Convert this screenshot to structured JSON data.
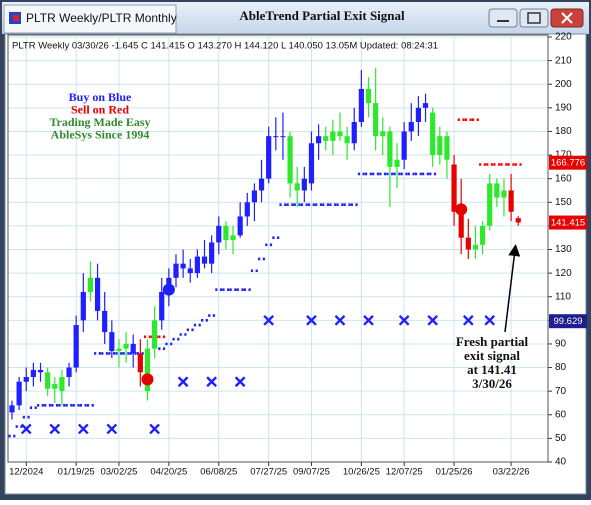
{
  "window": {
    "tab": "PLTR Weekly/PLTR Monthly",
    "title": "AbleTrend Partial Exit Signal"
  },
  "chart_data": {
    "type": "candlestick",
    "header": "PLTR  Weekly 03/30/26 -1.645 C 141.415 O 143.270 H 144.120 L 140.050 13.05M Updated: 08:24:31",
    "categories": [
      null,
      null,
      "12/2024",
      null,
      null,
      null,
      null,
      null,
      null,
      "01/19/25",
      null,
      null,
      null,
      null,
      null,
      "03/02/25",
      null,
      null,
      null,
      null,
      null,
      null,
      "04/20/25",
      null,
      null,
      null,
      null,
      null,
      null,
      "06/08/25",
      null,
      null,
      null,
      null,
      null,
      null,
      "07/27/25",
      null,
      null,
      null,
      null,
      null,
      "09/07/25",
      null,
      null,
      null,
      null,
      null,
      null,
      "10/26/25",
      null,
      null,
      null,
      null,
      null,
      "12/07/25",
      null,
      null,
      null,
      null,
      null,
      null,
      "01/25/26",
      null,
      null,
      null,
      null,
      null,
      null,
      null,
      "03/22/26",
      null
    ],
    "open": [
      61,
      64,
      74,
      76,
      79,
      78,
      71,
      70,
      76,
      80,
      100,
      112,
      118,
      104,
      95,
      87,
      88,
      90,
      86,
      70,
      88,
      100,
      112,
      118,
      124,
      122,
      120,
      127,
      124,
      133,
      140,
      134,
      136,
      144,
      150,
      155,
      160,
      178,
      178,
      178,
      158,
      155,
      158,
      175,
      178,
      176,
      180,
      178,
      175,
      184,
      198,
      192,
      178,
      180,
      165,
      168,
      180,
      184,
      190,
      188,
      170,
      178,
      166,
      146,
      135,
      130,
      132,
      140,
      158,
      152,
      155,
      143.27
    ],
    "high": [
      66,
      76,
      80,
      82,
      82,
      80,
      76,
      79,
      82,
      102,
      120,
      125,
      124,
      112,
      100,
      92,
      95,
      94,
      92,
      92,
      106,
      118,
      122,
      128,
      130,
      126,
      130,
      134,
      136,
      144,
      142,
      140,
      150,
      154,
      158,
      168,
      182,
      186,
      188,
      180,
      165,
      165,
      180,
      183,
      182,
      185,
      188,
      182,
      190,
      206,
      203,
      207,
      186,
      182,
      175,
      184,
      192,
      195,
      196,
      190,
      182,
      180,
      170,
      160,
      143,
      140,
      142,
      162,
      160,
      160,
      162,
      144.12
    ],
    "low": [
      58,
      62,
      70,
      72,
      74,
      68,
      65,
      64,
      72,
      78,
      95,
      108,
      100,
      90,
      84,
      80,
      82,
      80,
      72,
      66,
      84,
      96,
      106,
      114,
      118,
      116,
      118,
      122,
      120,
      128,
      130,
      128,
      135,
      140,
      142,
      150,
      158,
      172,
      168,
      152,
      148,
      150,
      155,
      168,
      172,
      170,
      176,
      168,
      172,
      182,
      186,
      172,
      170,
      148,
      156,
      164,
      176,
      178,
      184,
      165,
      166,
      160,
      140,
      128,
      126,
      126,
      128,
      138,
      148,
      144,
      142,
      140.05
    ],
    "close": [
      64,
      74,
      76,
      79,
      78,
      71,
      73,
      76,
      80,
      98,
      112,
      118,
      104,
      95,
      87,
      88,
      90,
      86,
      78,
      88,
      100,
      112,
      118,
      124,
      122,
      120,
      127,
      124,
      133,
      140,
      134,
      136,
      144,
      150,
      155,
      160,
      178,
      178,
      178,
      158,
      155,
      160,
      175,
      178,
      176,
      180,
      178,
      175,
      184,
      198,
      192,
      178,
      180,
      165,
      168,
      180,
      184,
      190,
      192,
      170,
      178,
      168,
      146,
      135,
      130,
      132,
      140,
      158,
      152,
      155,
      146,
      141.415
    ],
    "palette": {
      "blue": "#1f1fff",
      "green": "#2ee82e",
      "red": "#e60000"
    },
    "candle_colors": [
      "blue",
      "blue",
      "blue",
      "blue",
      "blue",
      "green",
      "green",
      "green",
      "blue",
      "blue",
      "blue",
      "green",
      "blue",
      "blue",
      "blue",
      "green",
      "green",
      "blue",
      "red",
      "green",
      "green",
      "blue",
      "blue",
      "blue",
      "blue",
      "blue",
      "blue",
      "blue",
      "blue",
      "blue",
      "green",
      "green",
      "blue",
      "blue",
      "blue",
      "blue",
      "blue",
      "blue",
      "blue",
      "green",
      "green",
      "blue",
      "blue",
      "blue",
      "green",
      "green",
      "green",
      "green",
      "blue",
      "blue",
      "green",
      "green",
      "green",
      "green",
      "green",
      "blue",
      "blue",
      "blue",
      "blue",
      "green",
      "green",
      "green",
      "red",
      "red",
      "red",
      "green",
      "green",
      "green",
      "green",
      "green",
      "red",
      "red"
    ],
    "support": {
      "color": "#1f1fff",
      "values": [
        51,
        55,
        59,
        63,
        64,
        64,
        64,
        64,
        64,
        64,
        64,
        64,
        86,
        86,
        86,
        86,
        86,
        86,
        86,
        null,
        null,
        88,
        90,
        92,
        94,
        96,
        98,
        100,
        102,
        113,
        113,
        113,
        113,
        113,
        121,
        126,
        132,
        135,
        149,
        149,
        149,
        149,
        149,
        149,
        149,
        149,
        149,
        149,
        149,
        162,
        162,
        162,
        162,
        162,
        162,
        162,
        162,
        162,
        162,
        162,
        null,
        null,
        null,
        null,
        null,
        null,
        null,
        null,
        null,
        null,
        null,
        null
      ]
    },
    "resistance": {
      "color": "#ff0000",
      "values": [
        null,
        null,
        null,
        null,
        null,
        null,
        null,
        null,
        null,
        null,
        null,
        null,
        null,
        null,
        null,
        null,
        null,
        null,
        null,
        93,
        93,
        93,
        null,
        null,
        null,
        null,
        null,
        null,
        null,
        null,
        null,
        null,
        null,
        null,
        null,
        null,
        null,
        null,
        null,
        null,
        null,
        null,
        null,
        null,
        null,
        null,
        null,
        null,
        null,
        null,
        null,
        null,
        null,
        null,
        null,
        null,
        null,
        null,
        null,
        null,
        null,
        null,
        null,
        185,
        185,
        185,
        166,
        166,
        166,
        166,
        166,
        166
      ]
    },
    "x_markers": {
      "color": "#1f1fff",
      "values": [
        null,
        null,
        54,
        null,
        null,
        null,
        54,
        null,
        null,
        null,
        54,
        null,
        null,
        null,
        54,
        null,
        null,
        null,
        null,
        null,
        54,
        null,
        null,
        null,
        74,
        null,
        null,
        null,
        74,
        null,
        null,
        null,
        74,
        null,
        null,
        null,
        100,
        null,
        null,
        null,
        null,
        null,
        100,
        null,
        null,
        null,
        100,
        null,
        null,
        null,
        100,
        null,
        null,
        null,
        null,
        100,
        null,
        null,
        null,
        100,
        null,
        null,
        null,
        null,
        100,
        null,
        null,
        100,
        null,
        null,
        null,
        null
      ]
    },
    "buy_dots": {
      "color": "#1f1fff",
      "values": [
        null,
        null,
        null,
        null,
        null,
        null,
        null,
        null,
        null,
        null,
        null,
        null,
        null,
        null,
        null,
        null,
        null,
        null,
        null,
        null,
        null,
        null,
        113,
        null,
        null,
        null,
        null,
        null,
        null,
        null,
        null,
        null,
        null,
        null,
        null,
        null,
        null,
        null,
        null,
        null,
        null,
        null,
        null,
        null,
        null,
        null,
        null,
        null,
        null,
        null,
        null,
        null,
        null,
        null,
        null,
        null,
        null,
        null,
        null,
        null,
        null,
        null,
        null,
        null,
        null,
        null,
        null,
        null,
        null,
        null,
        null,
        null
      ]
    },
    "sell_dots": {
      "color": "#e60000",
      "values": [
        null,
        null,
        null,
        null,
        null,
        null,
        null,
        null,
        null,
        null,
        null,
        null,
        null,
        null,
        null,
        null,
        null,
        null,
        null,
        75,
        null,
        null,
        null,
        null,
        null,
        null,
        null,
        null,
        null,
        null,
        null,
        null,
        null,
        null,
        null,
        null,
        null,
        null,
        null,
        null,
        null,
        null,
        null,
        null,
        null,
        null,
        null,
        null,
        null,
        null,
        null,
        null,
        null,
        null,
        null,
        null,
        null,
        null,
        null,
        null,
        null,
        null,
        null,
        147,
        null,
        null,
        null,
        null,
        null,
        null,
        null,
        null
      ]
    },
    "price_tags": {
      "values": [
        166.776,
        141.415,
        99.629
      ],
      "colors": [
        "#e60000",
        "#e60000",
        "#1e1e8c"
      ]
    },
    "ylim": [
      40,
      220
    ],
    "yticks": [
      40,
      50,
      60,
      70,
      80,
      90,
      100,
      110,
      120,
      130,
      140,
      150,
      160,
      170,
      180,
      190,
      200,
      210,
      220
    ],
    "grid": true,
    "annotations": [
      {
        "text": "Buy on Blue",
        "color": "#1f1fff"
      },
      {
        "text": "Sell on Red",
        "color": "#e60000"
      },
      {
        "text": "Trading Made Easy",
        "color": "#2e8b2e"
      },
      {
        "text": "AbleSys Since 1994",
        "color": "#2e8b2e"
      }
    ],
    "callout": [
      "Fresh partial",
      "exit signal",
      "at 141.41",
      "3/30/26"
    ]
  }
}
